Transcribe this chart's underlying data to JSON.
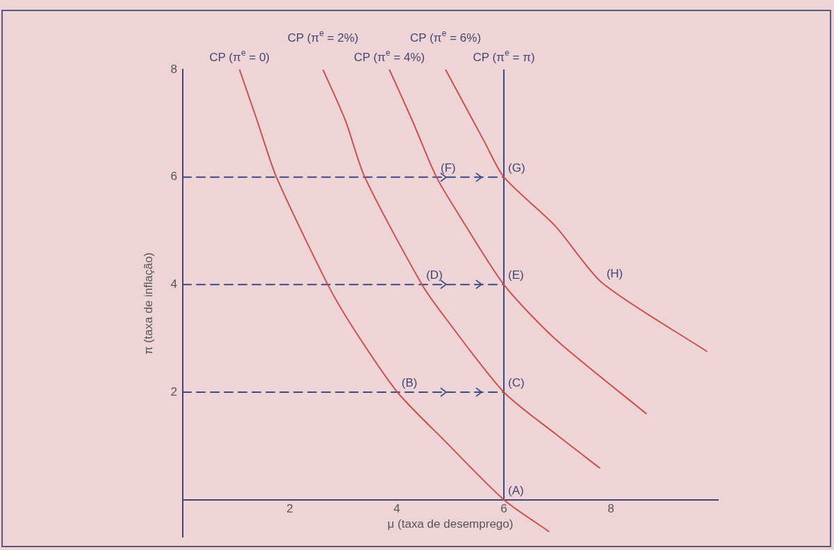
{
  "chart_data": {
    "type": "line",
    "xlabel": "μ (taxa de desemprego)",
    "ylabel": "π (taxa de inflação)",
    "xlim": [
      0,
      10
    ],
    "ylim": [
      -0.7,
      8
    ],
    "xticks": [
      2,
      4,
      6,
      8
    ],
    "yticks": [
      2,
      4,
      6,
      8
    ],
    "grid": false,
    "legend": false,
    "marker": "none",
    "line_style": "solid",
    "series": [
      {
        "name": "CP (π$^{e}$ = 0)",
        "color": "#c9514c",
        "x": [
          1.06,
          1.39,
          1.75,
          2.71,
          3.18,
          4.01,
          4.9,
          6.0,
          6.84
        ],
        "values": [
          8,
          7.05,
          6,
          4,
          3.2,
          2,
          1.09,
          0,
          -0.59
        ]
      },
      {
        "name": "CP (π$^{e}$ = 2%)",
        "color": "#c9514c",
        "x": [
          2.62,
          3.04,
          3.4,
          4.47,
          4.9,
          6.0,
          6.97,
          7.79
        ],
        "values": [
          8,
          7.05,
          6,
          4,
          3.39,
          2,
          1.22,
          0.59
        ]
      },
      {
        "name": "CP (π$^{e}$ = 4%)",
        "color": "#c9514c",
        "x": [
          3.86,
          4.29,
          4.74,
          5.19,
          6.0,
          6.97,
          8.66
        ],
        "values": [
          8,
          7.05,
          6,
          5.25,
          4,
          2.98,
          1.6
        ]
      },
      {
        "name": "CP (π$^{e}$ = 6%)",
        "color": "#c9514c",
        "x": [
          4.91,
          5.64,
          6.0,
          6.97,
          7.84,
          9.79
        ],
        "values": [
          8,
          6.65,
          6,
          5.08,
          4.03,
          2.76
        ]
      },
      {
        "name": "CP (π$^{e}$ = π)",
        "color": "#3b4a86",
        "x": [
          6,
          6
        ],
        "values": [
          8,
          0
        ]
      },
      {
        "color": "#3b4a86",
        "line_style": "dashed",
        "x": [
          0,
          6
        ],
        "values": [
          2,
          2
        ]
      },
      {
        "color": "#3b4a86",
        "line_style": "dashed",
        "x": [
          0,
          6
        ],
        "values": [
          4,
          4
        ]
      },
      {
        "color": "#3b4a86",
        "line_style": "dashed",
        "x": [
          0,
          6
        ],
        "values": [
          6,
          6
        ]
      }
    ],
    "annotations": [
      {
        "text": "(A)",
        "x": 6,
        "y": 0
      },
      {
        "text": "(B)",
        "x": 4.01,
        "y": 2
      },
      {
        "text": "(C)",
        "x": 6,
        "y": 2
      },
      {
        "text": "(D)",
        "x": 4.47,
        "y": 4
      },
      {
        "text": "(E)",
        "x": 6,
        "y": 4
      },
      {
        "text": "(F)",
        "x": 4.74,
        "y": 6
      },
      {
        "text": "(G)",
        "x": 6,
        "y": 6
      },
      {
        "text": "(H)",
        "x": 7.84,
        "y": 4.03
      }
    ]
  }
}
